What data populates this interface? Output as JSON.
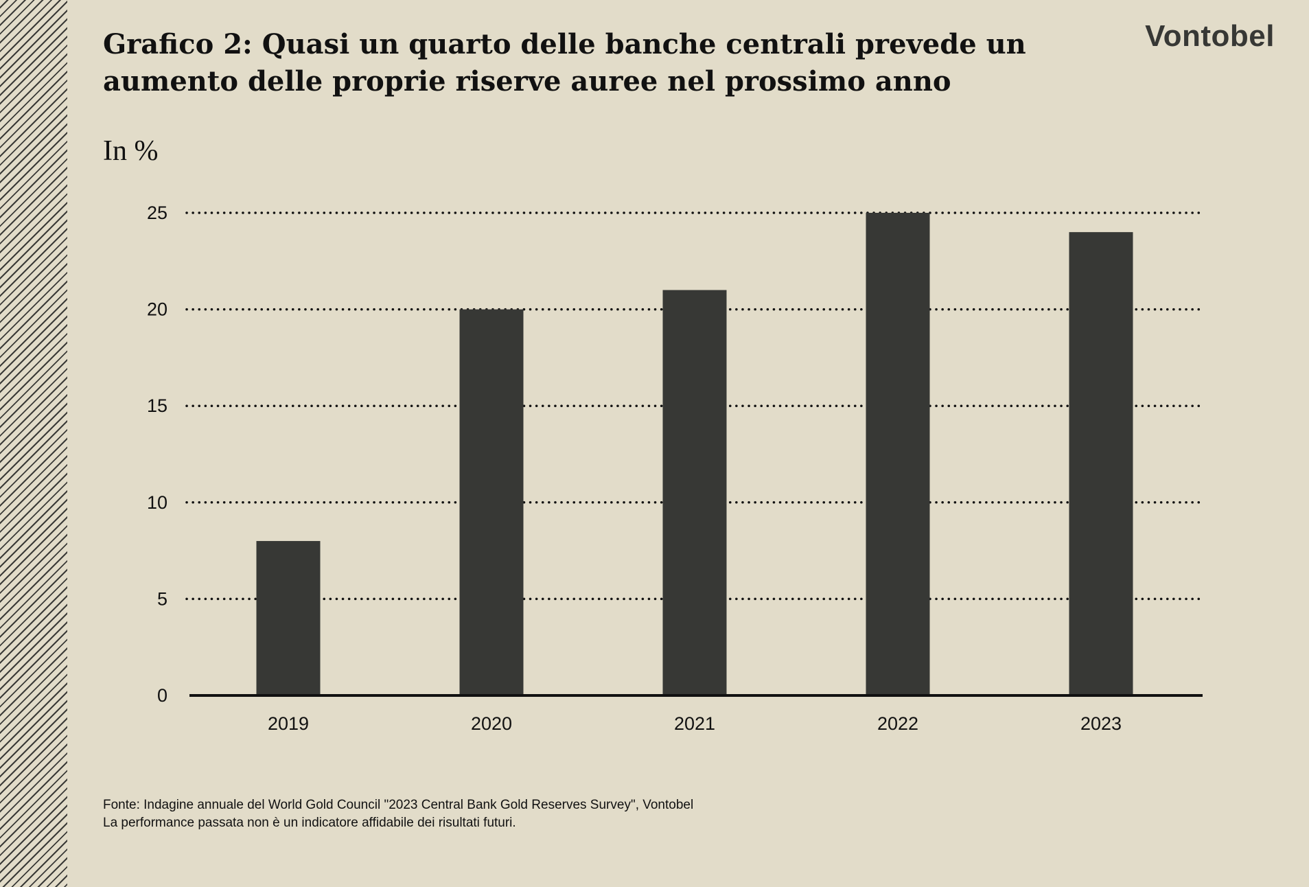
{
  "logo": "Vontobel",
  "colors": {
    "background": "#e2dcc9",
    "bar": "#373835",
    "axis": "#111111"
  },
  "chart_data": {
    "type": "bar",
    "title": "Grafico 2: Quasi un quarto delle banche centrali prevede un aumento delle proprie riserve auree nel prossimo anno",
    "ylabel": "In %",
    "xlabel": "",
    "categories": [
      "2019",
      "2020",
      "2021",
      "2022",
      "2023"
    ],
    "values": [
      8,
      20,
      21,
      25,
      24
    ],
    "ylim": [
      0,
      25
    ],
    "yticks": [
      0,
      5,
      10,
      15,
      20,
      25
    ],
    "grid": true,
    "legend": "none"
  },
  "footer": {
    "source": "Fonte: Indagine annuale del World Gold Council \"2023 Central Bank Gold Reserves Survey\", Vontobel",
    "disclaimer": "La performance passata non è un indicatore affidabile dei risultati futuri."
  }
}
